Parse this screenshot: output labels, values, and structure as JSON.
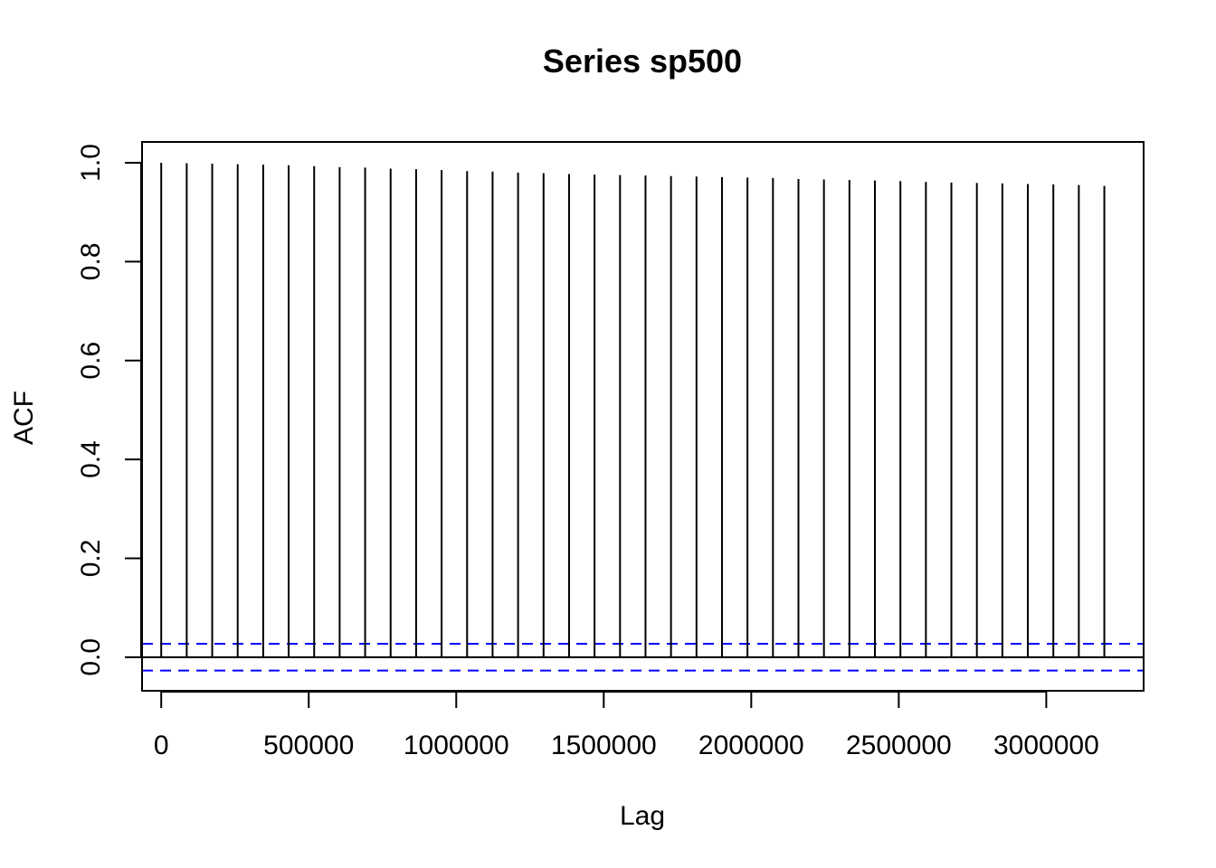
{
  "chart_data": {
    "type": "bar",
    "title": "Series  sp500",
    "xlabel": "Lag",
    "ylabel": "ACF",
    "xlim": [
      -65000,
      3330000
    ],
    "ylim": [
      -0.068,
      1.042
    ],
    "x_ticks": [
      0,
      500000,
      1000000,
      1500000,
      2000000,
      2500000,
      3000000
    ],
    "x_tick_labels": [
      "0",
      "500000",
      "1000000",
      "1500000",
      "2000000",
      "2500000",
      "3000000"
    ],
    "y_ticks": [
      0.0,
      0.2,
      0.4,
      0.6,
      0.8,
      1.0
    ],
    "y_tick_labels": [
      "0.0",
      "0.2",
      "0.4",
      "0.6",
      "0.8",
      "1.0"
    ],
    "confidence_bound": 0.027,
    "x": [
      0,
      86400,
      172800,
      259200,
      345600,
      432000,
      518400,
      604800,
      691200,
      777600,
      864000,
      950400,
      1036800,
      1123200,
      1209600,
      1296000,
      1382400,
      1468800,
      1555200,
      1641600,
      1728000,
      1814400,
      1900800,
      1987200,
      2073600,
      2160000,
      2246400,
      2332800,
      2419200,
      2505600,
      2592000,
      2678400,
      2764800,
      2851200,
      2937600,
      3024000,
      3110400,
      3196800
    ],
    "values": [
      1.0,
      0.999,
      0.998,
      0.997,
      0.996,
      0.995,
      0.993,
      0.991,
      0.99,
      0.988,
      0.987,
      0.985,
      0.983,
      0.982,
      0.98,
      0.979,
      0.977,
      0.976,
      0.975,
      0.974,
      0.973,
      0.972,
      0.971,
      0.97,
      0.969,
      0.967,
      0.966,
      0.965,
      0.964,
      0.963,
      0.961,
      0.96,
      0.959,
      0.958,
      0.957,
      0.956,
      0.955,
      0.953
    ],
    "colors": {
      "bars": "#000000",
      "confidence": "#0000ff",
      "zero_line": "#000000"
    }
  }
}
